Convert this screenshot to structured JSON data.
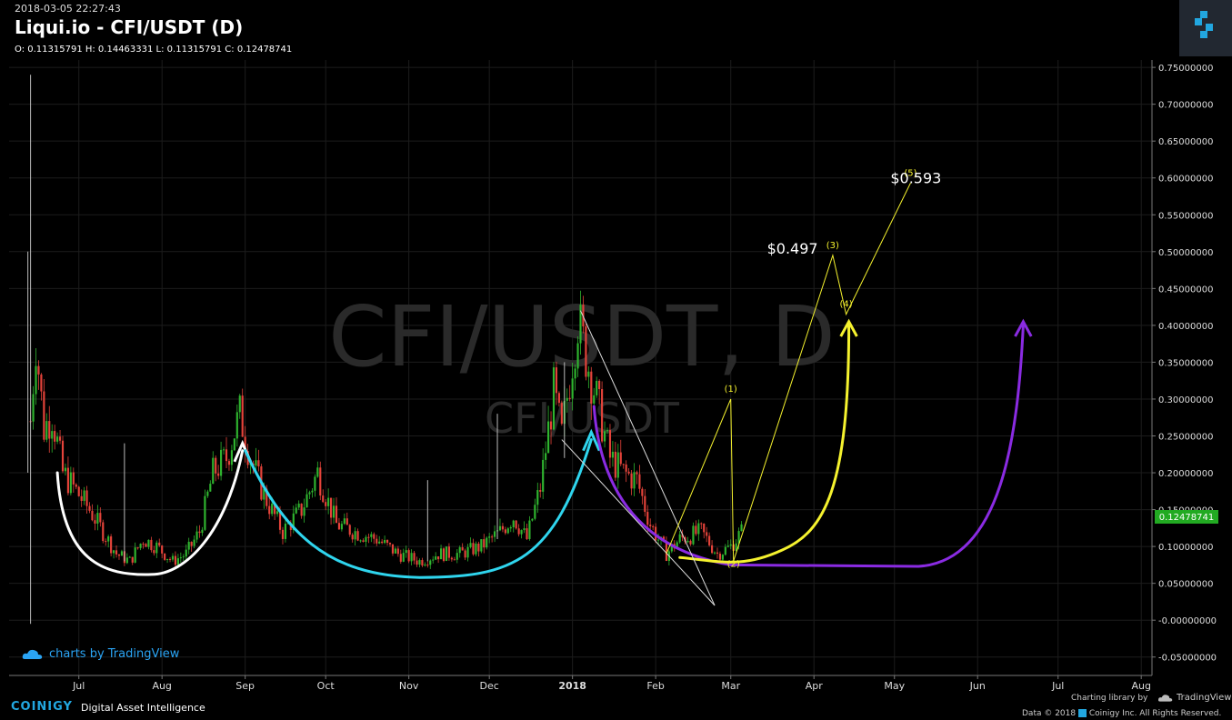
{
  "header": {
    "timestamp": "2018-03-05 22:27:43",
    "title": "Liqui.io - CFI/USDT (D)",
    "ohlc": "O: 0.11315791 H: 0.14463331 L: 0.11315791 C: 0.12478741"
  },
  "watermark": {
    "main": "CFI/USDT, D",
    "sub": "CFI/USDT"
  },
  "tradingview_badge": "charts by TradingView",
  "footer": {
    "brand": "COINIGY",
    "tagline": "Digital Asset Intelligence",
    "charting": "Charting library by",
    "tradingview": "TradingView",
    "data_credit": "Data © 2018",
    "copyright": "Coinigy Inc. All Rights Reserved."
  },
  "colors": {
    "background": "#000000",
    "grid": "#1c1c1c",
    "up_candle": "#2fb52f",
    "down_candle": "#e5433a",
    "price_label_bg": "#22aa22",
    "wave_color": "#f5f22e",
    "cup1": "#ffffff",
    "cup2": "#2fd5ee",
    "cup3": "#8a2be2",
    "accent": "#22a7e0"
  },
  "chart_data": {
    "type": "candlestick",
    "symbol": "CFI/USDT",
    "interval": "D",
    "ylim": [
      -0.075,
      0.76
    ],
    "y_ticks": [
      "0.75000000",
      "0.70000000",
      "0.65000000",
      "0.60000000",
      "0.55000000",
      "0.50000000",
      "0.45000000",
      "0.40000000",
      "0.35000000",
      "0.30000000",
      "0.25000000",
      "0.20000000",
      "0.15000000",
      "0.10000000",
      "0.05000000",
      "-0.00000000",
      "-0.05000000"
    ],
    "x_ticks": [
      "Jul",
      "Aug",
      "Sep",
      "Oct",
      "Nov",
      "Dec",
      "2018",
      "Feb",
      "Mar",
      "Apr",
      "May",
      "Jun",
      "Jul",
      "Aug"
    ],
    "x_range": [
      "2017-06-05",
      "2018-08-05"
    ],
    "last_price": "0.12478741",
    "last_price_value": 0.12478741,
    "candle_path": [
      [
        "2017-06-13",
        0.27
      ],
      [
        "2017-06-15",
        0.38
      ],
      [
        "2017-06-18",
        0.26
      ],
      [
        "2017-06-21",
        0.28
      ],
      [
        "2017-06-25",
        0.2
      ],
      [
        "2017-07-01",
        0.17
      ],
      [
        "2017-07-05",
        0.15
      ],
      [
        "2017-07-10",
        0.12
      ],
      [
        "2017-07-15",
        0.09
      ],
      [
        "2017-07-20",
        0.08
      ],
      [
        "2017-07-25",
        0.11
      ],
      [
        "2017-07-30",
        0.1
      ],
      [
        "2017-08-05",
        0.08
      ],
      [
        "2017-08-10",
        0.09
      ],
      [
        "2017-08-15",
        0.12
      ],
      [
        "2017-08-20",
        0.2
      ],
      [
        "2017-08-25",
        0.22
      ],
      [
        "2017-08-30",
        0.28
      ],
      [
        "2017-09-03",
        0.22
      ],
      [
        "2017-09-08",
        0.17
      ],
      [
        "2017-09-15",
        0.12
      ],
      [
        "2017-09-22",
        0.15
      ],
      [
        "2017-09-28",
        0.2
      ],
      [
        "2017-10-05",
        0.13
      ],
      [
        "2017-10-12",
        0.12
      ],
      [
        "2017-10-20",
        0.11
      ],
      [
        "2017-10-28",
        0.09
      ],
      [
        "2017-11-05",
        0.08
      ],
      [
        "2017-11-12",
        0.09
      ],
      [
        "2017-11-20",
        0.09
      ],
      [
        "2017-11-28",
        0.1
      ],
      [
        "2017-12-05",
        0.12
      ],
      [
        "2017-12-10",
        0.14
      ],
      [
        "2017-12-15",
        0.11
      ],
      [
        "2017-12-20",
        0.18
      ],
      [
        "2017-12-25",
        0.31
      ],
      [
        "2017-12-28",
        0.25
      ],
      [
        "2018-01-03",
        0.41
      ],
      [
        "2018-01-06",
        0.36
      ],
      [
        "2018-01-10",
        0.3
      ],
      [
        "2018-01-15",
        0.22
      ],
      [
        "2018-01-20",
        0.2
      ],
      [
        "2018-01-25",
        0.19
      ],
      [
        "2018-01-30",
        0.13
      ],
      [
        "2018-02-05",
        0.09
      ],
      [
        "2018-02-10",
        0.11
      ],
      [
        "2018-02-18",
        0.12
      ],
      [
        "2018-02-24",
        0.09
      ],
      [
        "2018-03-01",
        0.1
      ],
      [
        "2018-03-05",
        0.12
      ]
    ],
    "spikes": [
      {
        "date": "2017-06-13",
        "high": 0.74,
        "low": -0.005
      },
      {
        "date": "2017-06-12",
        "high": 0.5,
        "low": 0.2
      },
      {
        "date": "2017-07-18",
        "high": 0.24,
        "low": 0.08
      },
      {
        "date": "2017-11-08",
        "high": 0.19,
        "low": 0.08
      },
      {
        "date": "2017-12-04",
        "high": 0.28,
        "low": 0.11
      },
      {
        "date": "2017-12-29",
        "high": 0.35,
        "low": 0.22
      }
    ],
    "annotations": {
      "price_labels": [
        {
          "date": "2018-03-24",
          "value": 0.497,
          "text": "$0.497"
        },
        {
          "date": "2018-05-09",
          "value": 0.593,
          "text": "$0.593"
        }
      ],
      "waves": [
        {
          "label": "(1)",
          "date": "2018-03-01",
          "value": 0.3
        },
        {
          "label": "(2)",
          "date": "2018-03-02",
          "value": 0.08
        },
        {
          "label": "(3)",
          "date": "2018-04-08",
          "value": 0.495
        },
        {
          "label": "(4)",
          "date": "2018-04-13",
          "value": 0.415
        },
        {
          "label": "(5)",
          "date": "2018-05-07",
          "value": 0.593
        }
      ]
    }
  }
}
